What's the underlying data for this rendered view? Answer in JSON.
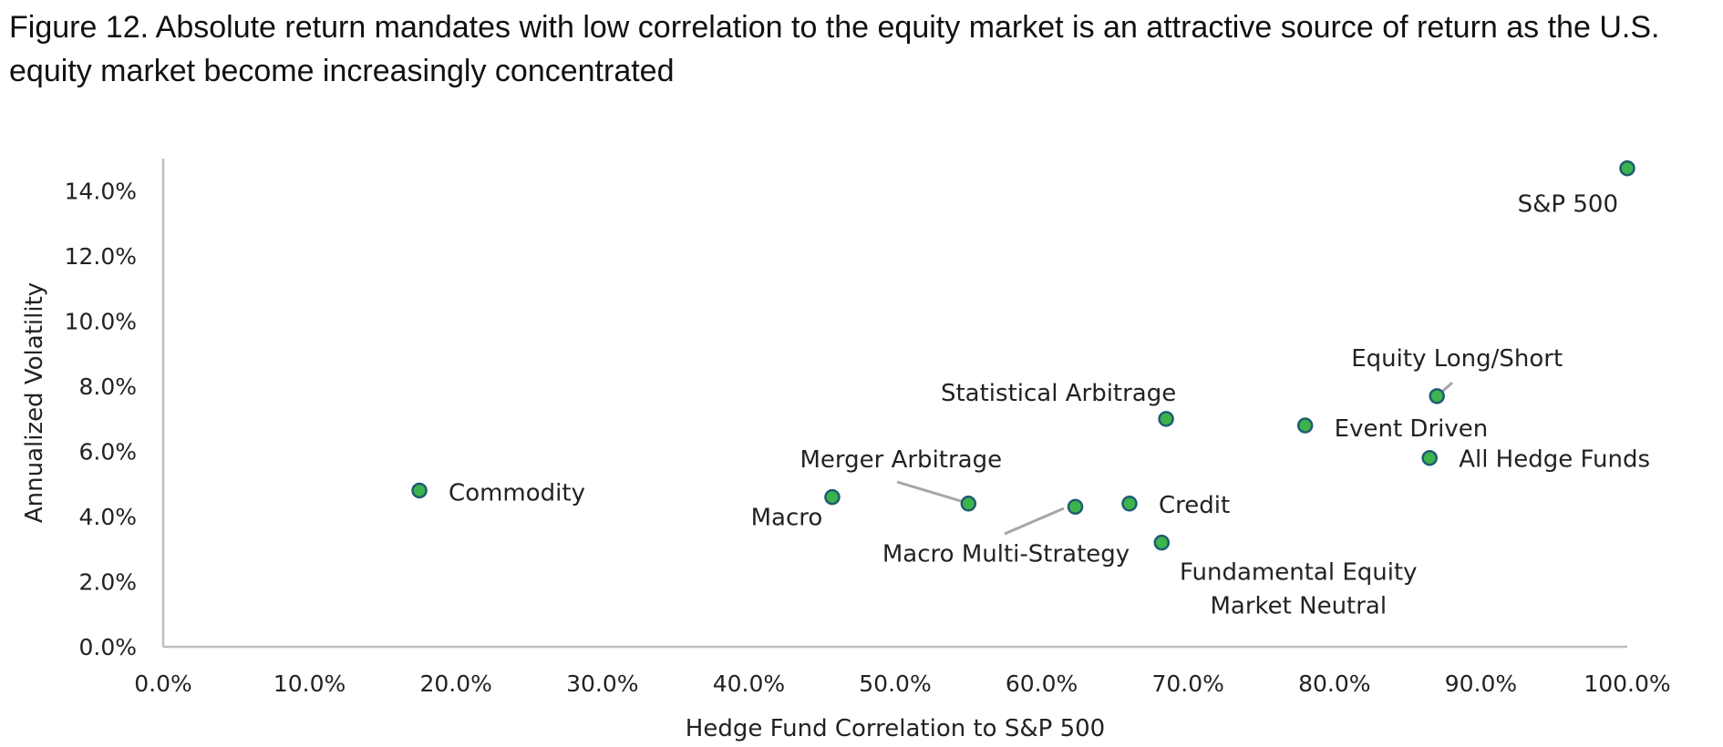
{
  "chart_data": {
    "type": "scatter",
    "title": "Figure 12. Absolute return mandates with low correlation to the equity market is an attractive source of return as the U.S. equity market become increasingly concentrated",
    "xlabel": "Hedge Fund Correlation to S&P 500",
    "ylabel": "Annualized Volatility",
    "xlim": [
      0,
      1.0
    ],
    "ylim": [
      0,
      0.15
    ],
    "x_ticks": [
      0,
      0.1,
      0.2,
      0.3,
      0.4,
      0.5,
      0.6,
      0.7,
      0.8,
      0.9,
      1.0
    ],
    "y_ticks": [
      0,
      0.02,
      0.04,
      0.06,
      0.08,
      0.1,
      0.12,
      0.14
    ],
    "x_tick_labels": [
      "0.0%",
      "10.0%",
      "20.0%",
      "30.0%",
      "40.0%",
      "50.0%",
      "60.0%",
      "70.0%",
      "80.0%",
      "90.0%",
      "100.0%"
    ],
    "y_tick_labels": [
      "0.0%",
      "2.0%",
      "4.0%",
      "6.0%",
      "8.0%",
      "10.0%",
      "12.0%",
      "14.0%"
    ],
    "grid": false,
    "legend": "none",
    "points": [
      {
        "name": "S&P 500",
        "lines": [
          "S&P 500"
        ],
        "x": 1.0,
        "y": 0.147
      },
      {
        "name": "Equity Long/Short",
        "lines": [
          "Equity Long/Short"
        ],
        "x": 0.87,
        "y": 0.077
      },
      {
        "name": "Event Driven",
        "lines": [
          "Event Driven"
        ],
        "x": 0.78,
        "y": 0.068
      },
      {
        "name": "All Hedge Funds",
        "lines": [
          "All Hedge Funds"
        ],
        "x": 0.865,
        "y": 0.058
      },
      {
        "name": "Statistical Arbitrage",
        "lines": [
          "Statistical Arbitrage"
        ],
        "x": 0.685,
        "y": 0.07
      },
      {
        "name": "Commodity",
        "lines": [
          "Commodity"
        ],
        "x": 0.175,
        "y": 0.048
      },
      {
        "name": "Merger Arbitrage",
        "lines": [
          "Merger Arbitrage"
        ],
        "x": 0.55,
        "y": 0.044
      },
      {
        "name": "Macro",
        "lines": [
          "Macro"
        ],
        "x": 0.457,
        "y": 0.046
      },
      {
        "name": "Macro Multi-Strategy",
        "lines": [
          "Macro Multi-Strategy"
        ],
        "x": 0.623,
        "y": 0.043
      },
      {
        "name": "Credit",
        "lines": [
          "Credit"
        ],
        "x": 0.66,
        "y": 0.044
      },
      {
        "name": "Fundamental Equity Market Neutral",
        "lines": [
          "Fundamental Equity",
          "Market Neutral"
        ],
        "x": 0.682,
        "y": 0.032
      }
    ]
  }
}
